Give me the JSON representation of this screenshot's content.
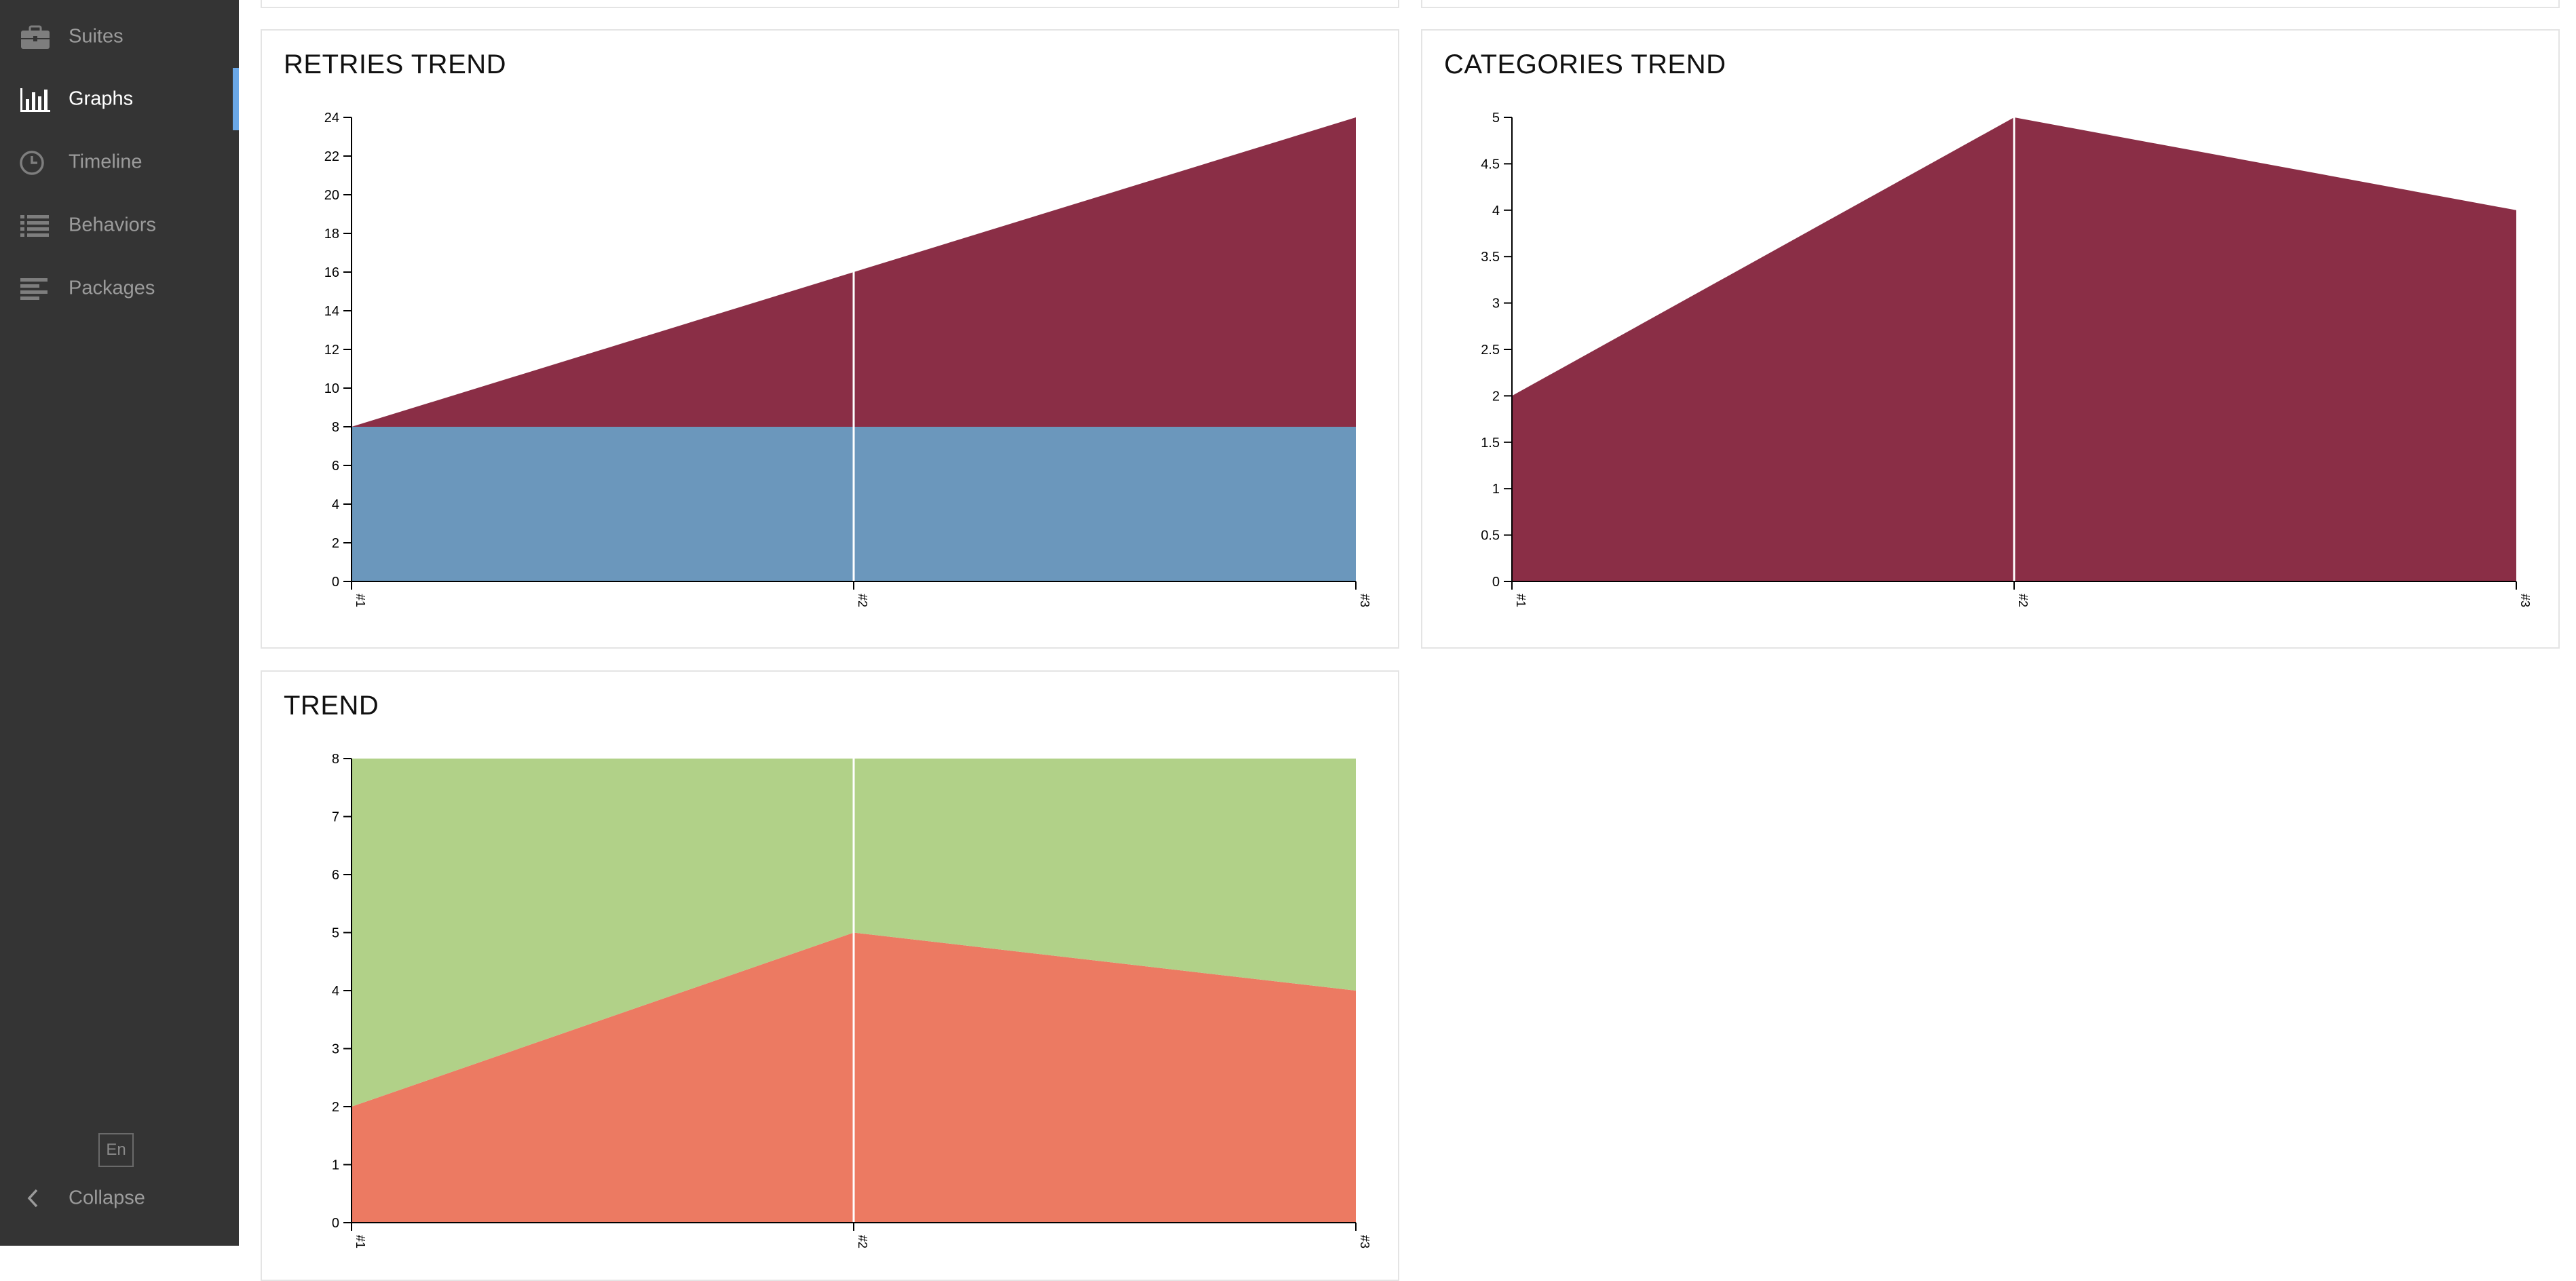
{
  "sidebar": {
    "items": [
      {
        "label": "Suites",
        "icon": "briefcase-icon",
        "active": false
      },
      {
        "label": "Graphs",
        "icon": "bar-chart-icon",
        "active": true
      },
      {
        "label": "Timeline",
        "icon": "clock-icon",
        "active": false
      },
      {
        "label": "Behaviors",
        "icon": "list-icon",
        "active": false
      },
      {
        "label": "Packages",
        "icon": "align-left-icon",
        "active": false
      }
    ],
    "language": "En",
    "collapse_label": "Collapse"
  },
  "widgets": {
    "retries": {
      "title": "RETRIES TREND"
    },
    "categories": {
      "title": "CATEGORIES TREND"
    },
    "trend": {
      "title": "TREND"
    }
  },
  "colors": {
    "sidebar_bg": "#343434",
    "accent": "#6aa8e8",
    "retries_top": "#8a2e46",
    "retries_bottom": "#6b97bc",
    "categories_area": "#8a2e46",
    "passed": "#b1d188",
    "failed": "#ec7a62"
  },
  "chart_data": [
    {
      "id": "retries",
      "type": "area",
      "title": "RETRIES TREND",
      "x": [
        "#1",
        "#2",
        "#3"
      ],
      "stacked": true,
      "series": [
        {
          "values": [
            8,
            8,
            8
          ],
          "color": "#6b97bc"
        },
        {
          "values": [
            0,
            8,
            16
          ],
          "color": "#8a2e46"
        }
      ],
      "ylim": [
        0,
        24
      ],
      "yticks": [
        0,
        2,
        4,
        6,
        8,
        10,
        12,
        14,
        16,
        18,
        20,
        22,
        24
      ],
      "ytick_labels": [
        "0",
        "2",
        "4",
        "6",
        "8",
        "10",
        "12",
        "14",
        "16",
        "18",
        "20",
        "22",
        "24"
      ]
    },
    {
      "id": "categories",
      "type": "area",
      "title": "CATEGORIES TREND",
      "x": [
        "#1",
        "#2",
        "#3"
      ],
      "stacked": true,
      "series": [
        {
          "values": [
            2,
            5,
            4
          ],
          "color": "#8a2e46"
        }
      ],
      "ylim": [
        0,
        5
      ],
      "yticks": [
        0,
        0.5,
        1,
        1.5,
        2,
        2.5,
        3,
        3.5,
        4,
        4.5,
        5
      ],
      "ytick_labels": [
        "0",
        "0.5",
        "1",
        "1.5",
        "2",
        "2.5",
        "3",
        "3.5",
        "4",
        "4.5",
        "5"
      ]
    },
    {
      "id": "trend",
      "type": "area",
      "title": "TREND",
      "x": [
        "#1",
        "#2",
        "#3"
      ],
      "stacked": true,
      "series": [
        {
          "values": [
            2,
            5,
            4
          ],
          "color": "#ec7a62"
        },
        {
          "values": [
            6,
            3,
            4
          ],
          "color": "#b1d188"
        }
      ],
      "ylim": [
        0,
        8
      ],
      "yticks": [
        0,
        1,
        2,
        3,
        4,
        5,
        6,
        7,
        8
      ],
      "ytick_labels": [
        "0",
        "1",
        "2",
        "3",
        "4",
        "5",
        "6",
        "7",
        "8"
      ]
    }
  ]
}
